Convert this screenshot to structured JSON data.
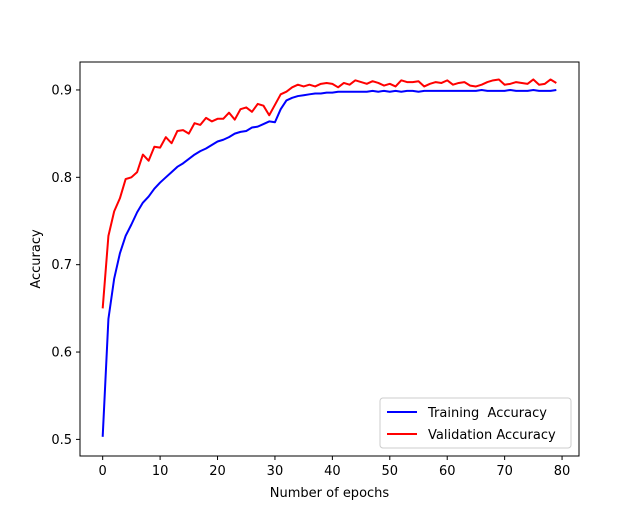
{
  "chart_data": {
    "type": "line",
    "xlabel": "Number of epochs",
    "ylabel": "Accuracy",
    "xlim": [
      -3.95,
      82.95
    ],
    "ylim": [
      0.481,
      0.932
    ],
    "xticks": [
      0,
      10,
      20,
      30,
      40,
      50,
      60,
      70,
      80
    ],
    "yticks": [
      0.5,
      0.6,
      0.7,
      0.8,
      0.9
    ],
    "xtick_labels": [
      "0",
      "10",
      "20",
      "30",
      "40",
      "50",
      "60",
      "70",
      "80"
    ],
    "ytick_labels": [
      "0.5",
      "0.6",
      "0.7",
      "0.8",
      "0.9"
    ],
    "grid": false,
    "legend_position": "lower-right",
    "x": [
      0,
      1,
      2,
      3,
      4,
      5,
      6,
      7,
      8,
      9,
      10,
      11,
      12,
      13,
      14,
      15,
      16,
      17,
      18,
      19,
      20,
      21,
      22,
      23,
      24,
      25,
      26,
      27,
      28,
      29,
      30,
      31,
      32,
      33,
      34,
      35,
      36,
      37,
      38,
      39,
      40,
      41,
      42,
      43,
      44,
      45,
      46,
      47,
      48,
      49,
      50,
      51,
      52,
      53,
      54,
      55,
      56,
      57,
      58,
      59,
      60,
      61,
      62,
      63,
      64,
      65,
      66,
      67,
      68,
      69,
      70,
      71,
      72,
      73,
      74,
      75,
      76,
      77,
      78,
      79
    ],
    "series": [
      {
        "name": "Training  Accuracy",
        "color": "#0000ff",
        "values": [
          0.503,
          0.638,
          0.684,
          0.713,
          0.733,
          0.746,
          0.76,
          0.771,
          0.778,
          0.787,
          0.794,
          0.8,
          0.806,
          0.812,
          0.816,
          0.821,
          0.826,
          0.83,
          0.833,
          0.837,
          0.841,
          0.843,
          0.846,
          0.85,
          0.852,
          0.853,
          0.857,
          0.858,
          0.861,
          0.864,
          0.863,
          0.878,
          0.888,
          0.891,
          0.893,
          0.894,
          0.895,
          0.896,
          0.896,
          0.897,
          0.897,
          0.898,
          0.898,
          0.898,
          0.898,
          0.898,
          0.898,
          0.899,
          0.898,
          0.899,
          0.898,
          0.899,
          0.898,
          0.899,
          0.899,
          0.898,
          0.899,
          0.899,
          0.899,
          0.899,
          0.899,
          0.899,
          0.899,
          0.899,
          0.899,
          0.899,
          0.9,
          0.899,
          0.899,
          0.899,
          0.899,
          0.9,
          0.899,
          0.899,
          0.899,
          0.9,
          0.899,
          0.899,
          0.899,
          0.9
        ]
      },
      {
        "name": "Validation Accuracy",
        "color": "#ff0000",
        "values": [
          0.65,
          0.733,
          0.761,
          0.776,
          0.798,
          0.8,
          0.806,
          0.826,
          0.819,
          0.835,
          0.834,
          0.846,
          0.839,
          0.853,
          0.854,
          0.85,
          0.862,
          0.86,
          0.868,
          0.864,
          0.867,
          0.867,
          0.874,
          0.866,
          0.878,
          0.88,
          0.875,
          0.884,
          0.882,
          0.871,
          0.883,
          0.895,
          0.898,
          0.903,
          0.906,
          0.904,
          0.906,
          0.904,
          0.907,
          0.908,
          0.907,
          0.903,
          0.908,
          0.906,
          0.911,
          0.909,
          0.907,
          0.91,
          0.908,
          0.905,
          0.907,
          0.904,
          0.911,
          0.909,
          0.909,
          0.91,
          0.904,
          0.907,
          0.909,
          0.908,
          0.911,
          0.906,
          0.908,
          0.909,
          0.905,
          0.904,
          0.906,
          0.909,
          0.911,
          0.912,
          0.906,
          0.907,
          0.909,
          0.908,
          0.907,
          0.912,
          0.906,
          0.907,
          0.912,
          0.908
        ]
      }
    ]
  }
}
